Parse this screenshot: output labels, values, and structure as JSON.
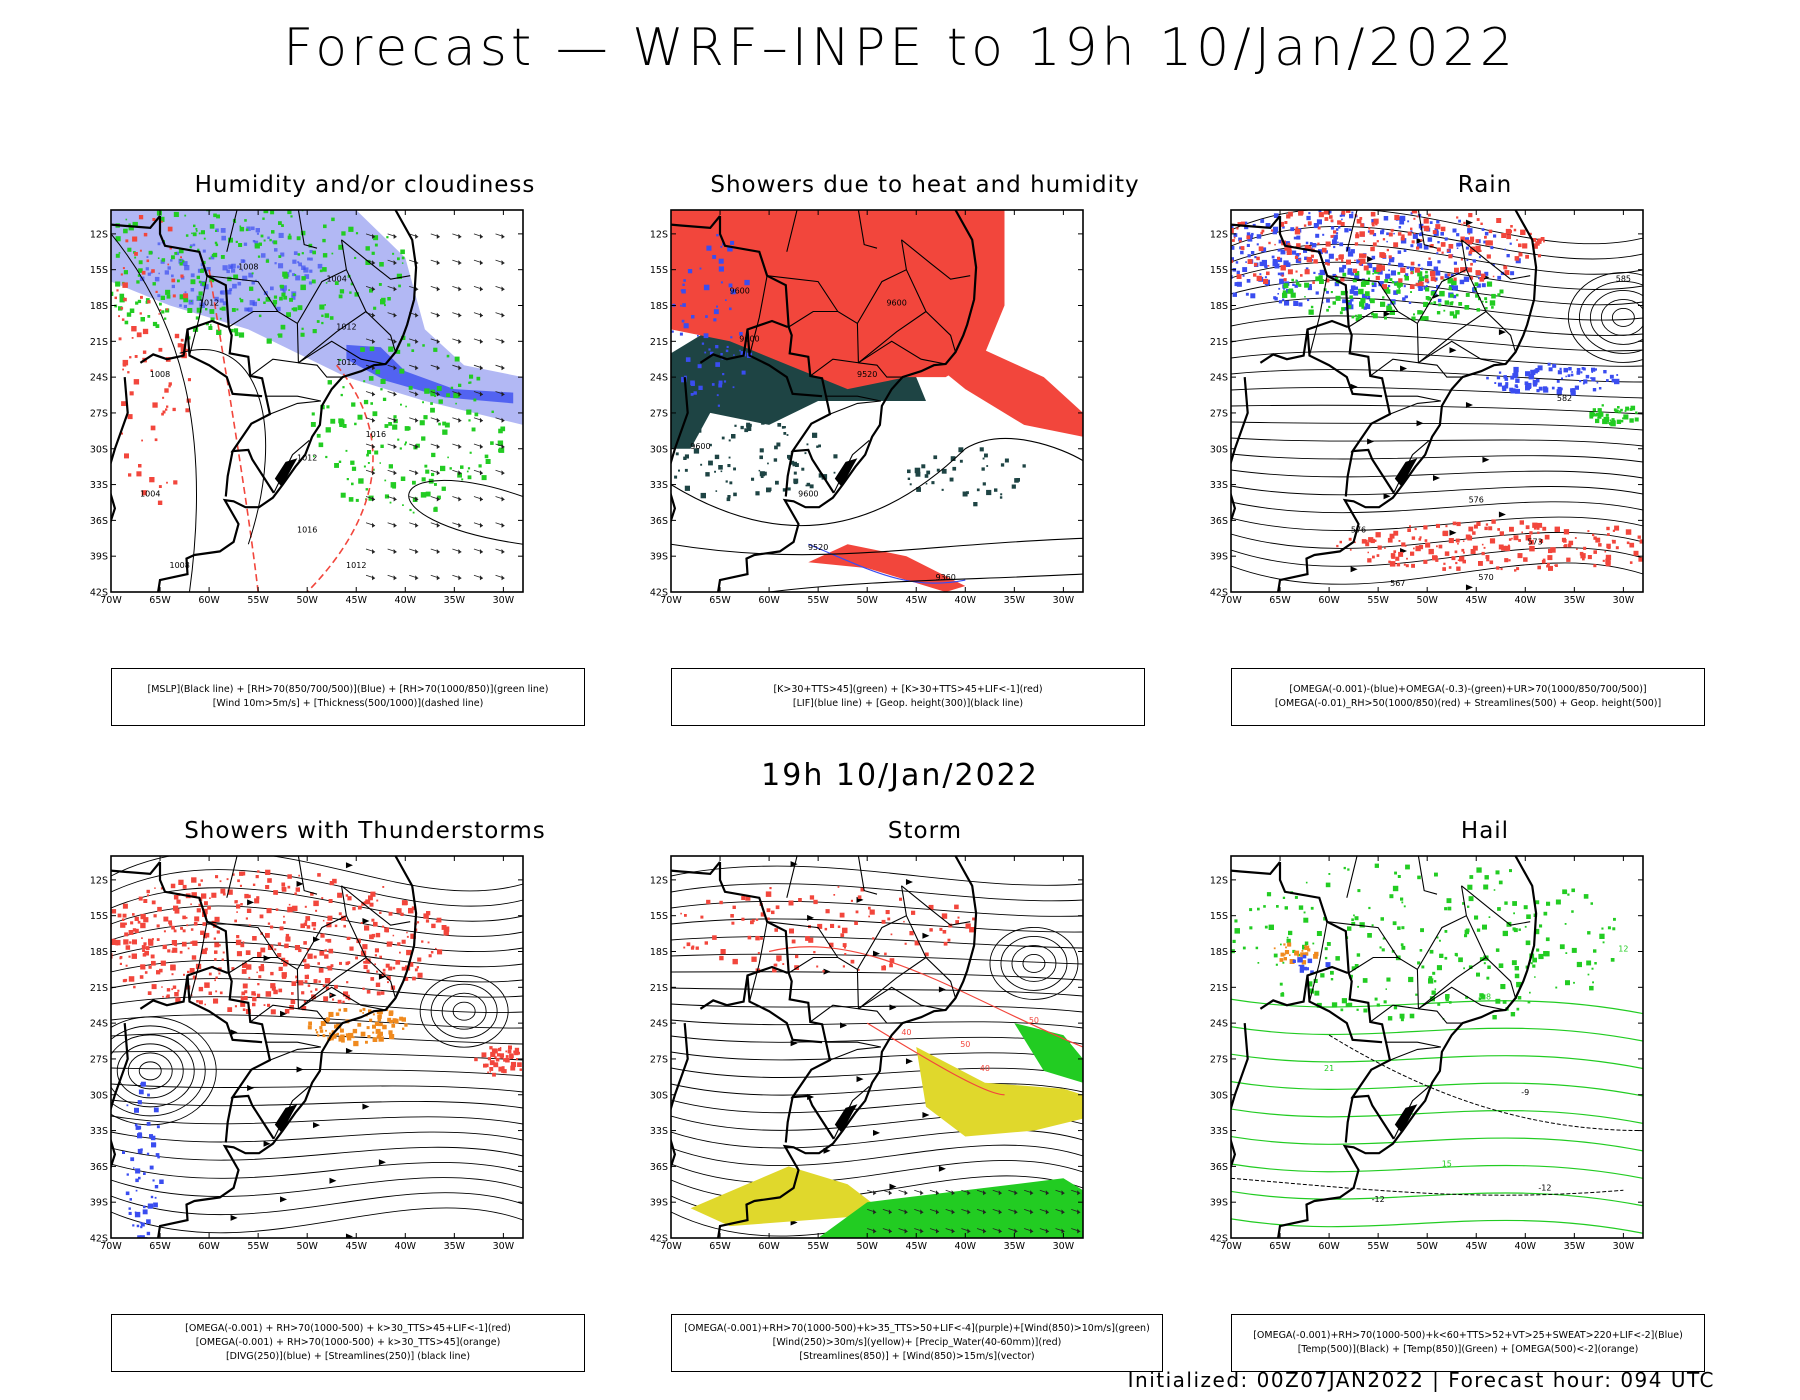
{
  "header": {
    "title": "Forecast — WRF–INPE to 19h 10/Jan/2022"
  },
  "middle": {
    "title": "19h 10/Jan/2022"
  },
  "footer": {
    "text": "Initialized: 00Z07JAN2022 | Forecast hour: 094 UTC"
  },
  "axes": {
    "lat_labels": [
      "12S",
      "15S",
      "18S",
      "21S",
      "24S",
      "27S",
      "30S",
      "33S",
      "36S",
      "39S",
      "42S"
    ],
    "lon_labels": [
      "70W",
      "65W",
      "60W",
      "55W",
      "50W",
      "45W",
      "40W",
      "35W",
      "30W"
    ]
  },
  "colors": {
    "red": "#f2463c",
    "blue": "#3a4df0",
    "green": "#22cc22",
    "lightblue": "#b2b8f4",
    "darkteal": "#1e4444",
    "yellow": "#e0d82c",
    "orange": "#f08a1e"
  },
  "panels": [
    {
      "id": "humidity",
      "title": "Humidity and/or cloudiness",
      "legend": [
        "[MSLP](Black line) + [RH>70(850/700/500)](Blue) + [RH>70(1000/850)](green line)",
        "[Wind 10m>5m/s] + [Thickness(500/1000)](dashed line)"
      ],
      "contour_labels": [
        "1012",
        "1008",
        "1004",
        "1012",
        "1012",
        "1016",
        "1012",
        "1008",
        "1004",
        "1008",
        "1012",
        "1016"
      ]
    },
    {
      "id": "showers_heat",
      "title": "Showers due to heat and humidity",
      "legend": [
        "[K>30+TTS>45](green) + [K>30+TTS>45+LIF<-1](red)",
        "[LIF](blue line) + [Geop. height(300)](black line)"
      ],
      "contour_labels": [
        "9600",
        "9600",
        "9600",
        "9520",
        "9520",
        "9600",
        "9360",
        "9600"
      ]
    },
    {
      "id": "rain",
      "title": "Rain",
      "legend": [
        "[OMEGA(-0.001)-(blue)+OMEGA(-0.3)-(green)+UR>70(1000/850/700/500)]",
        "[OMEGA(-0.01)_RH>50(1000/850)(red) + Streamlines(500) + Geop. height(500)]"
      ],
      "contour_labels": [
        "585",
        "576",
        "573",
        "570",
        "567",
        "582",
        "576"
      ]
    },
    {
      "id": "thunderstorms",
      "title": "Showers with Thunderstorms",
      "legend": [
        "[OMEGA(-0.001) + RH>70(1000-500) + k>30_TTS>45+LIF<-1](red)",
        "[OMEGA(-0.001) + RH>70(1000-500) + k>30_TTS>45](orange)",
        "[DIVG(250)](blue) + [Streamlines(250)] (black line)"
      ]
    },
    {
      "id": "storm",
      "title": "Storm",
      "legend": [
        "[OMEGA(-0.001)+RH>70(1000-500)+k>35_TTS>50+LIF<-4](purple)+[Wind(850)>10m/s](green)",
        "[Wind(250)>30m/s](yellow)+ [Precip_Water(40-60mm)](red)",
        "[Streamlines(850)] + [Wind(850)>15m/s](vector)"
      ],
      "contour_labels": [
        "50",
        "40",
        "50",
        "40"
      ]
    },
    {
      "id": "hail",
      "title": "Hail",
      "legend": [
        "[OMEGA(-0.001)+RH>70(1000-500)+k<60+TTS>52+VT>25+SWEAT>220+LIF<-2](Blue)",
        "[Temp(500)](Black) + [Temp(850)](Green) + [OMEGA(500)<-2](orange)"
      ],
      "contour_labels": [
        "-12",
        "-9",
        "12",
        "21",
        "15",
        "18",
        "-12"
      ]
    }
  ]
}
